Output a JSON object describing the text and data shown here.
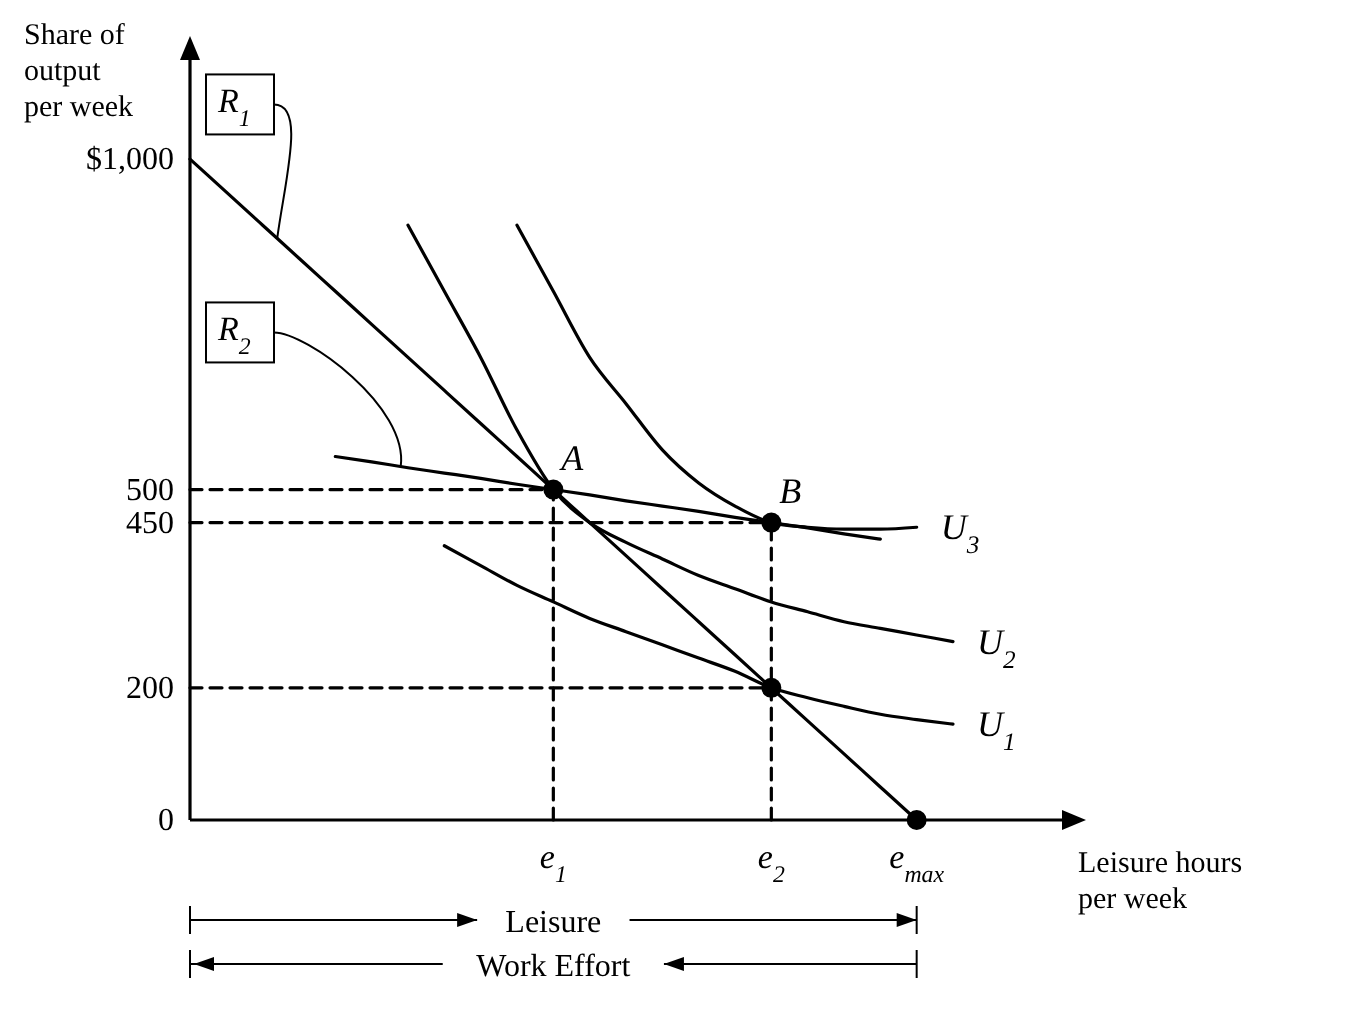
{
  "chart_data": {
    "type": "line",
    "ylabel": "Share of output per week",
    "xlabel": "Leisure hours per week",
    "ylim": [
      0,
      1150
    ],
    "categories": [
      null,
      null,
      null,
      null,
      null,
      null,
      null,
      null,
      null,
      null,
      "e$_{1}$",
      null,
      null,
      null,
      null,
      null,
      "e$_{2}$",
      null,
      null,
      null,
      "e$_{max}$",
      null,
      null,
      null
    ],
    "yticks": [
      0,
      200,
      450,
      500,
      {
        "value": 1000,
        "label": "$1,000"
      }
    ],
    "series": [
      {
        "name": "R$_{1}$",
        "color": "#000000",
        "values": [
          1000,
          950,
          900,
          850,
          800,
          750,
          700,
          650,
          600,
          550,
          500,
          450,
          400,
          350,
          300,
          250,
          200,
          150,
          100,
          50,
          0,
          null,
          null,
          null
        ]
      },
      {
        "name": "R$_{2}$",
        "color": "#000000",
        "values": [
          null,
          null,
          null,
          null,
          550,
          542,
          533,
          525,
          517,
          508,
          500,
          492,
          483,
          475,
          467,
          458,
          450,
          442,
          433,
          425,
          null,
          null,
          null,
          null
        ]
      },
      {
        "name": "U$_{1}$",
        "color": "#000000",
        "values": [
          null,
          null,
          null,
          null,
          null,
          null,
          null,
          415,
          385,
          355,
          330,
          305,
          285,
          265,
          245,
          225,
          200,
          185,
          172,
          160,
          152,
          145,
          null,
          null
        ]
      },
      {
        "name": "U$_{2}$",
        "color": "#000000",
        "values": [
          null,
          null,
          null,
          null,
          null,
          null,
          900,
          800,
          700,
          590,
          500,
          450,
          420,
          395,
          370,
          350,
          330,
          315,
          300,
          290,
          280,
          270,
          null,
          null
        ]
      },
      {
        "name": "U$_{3}$",
        "color": "#000000",
        "values": [
          null,
          null,
          null,
          null,
          null,
          null,
          null,
          null,
          null,
          900,
          800,
          700,
          630,
          560,
          510,
          475,
          450,
          443,
          440,
          440,
          443,
          null,
          null,
          null
        ]
      },
      {
        "color": "#000000",
        "line_style": "dashed",
        "values": [
          500,
          500,
          500,
          500,
          500,
          500,
          500,
          500,
          500,
          500,
          500,
          null,
          null,
          null,
          null,
          null,
          null,
          null,
          null,
          null,
          null,
          null,
          null,
          null
        ]
      },
      {
        "color": "#000000",
        "line_style": "dashed",
        "values": [
          450,
          450,
          450,
          450,
          450,
          450,
          450,
          450,
          450,
          450,
          450,
          450,
          450,
          450,
          450,
          450,
          450,
          null,
          null,
          null,
          null,
          null,
          null,
          null
        ]
      },
      {
        "color": "#000000",
        "line_style": "dashed",
        "values": [
          200,
          200,
          200,
          200,
          200,
          200,
          200,
          200,
          200,
          200,
          200,
          200,
          200,
          200,
          200,
          200,
          200,
          null,
          null,
          null,
          null,
          null,
          null,
          null
        ]
      },
      {
        "color": "#000000",
        "line_style": "dashed",
        "x": [
          "e$_{1}$",
          "e$_{1}$"
        ],
        "values": [
          0,
          500
        ]
      },
      {
        "color": "#000000",
        "line_style": "dashed",
        "x": [
          "e$_{2}$",
          "e$_{2}$"
        ],
        "values": [
          0,
          450
        ]
      },
      {
        "type": "scatter",
        "marker": "circle",
        "color": "#000000",
        "x": [
          "e$_{1}$",
          "e$_{2}$",
          "e$_{2}$",
          "e$_{max}$"
        ],
        "values": [
          500,
          450,
          200,
          0
        ]
      }
    ],
    "annotations": [
      {
        "text": "A",
        "x": "e$_{1}$",
        "y": 500
      },
      {
        "text": "B",
        "x": "e$_{2}$",
        "y": 450
      },
      "Leisure",
      "Work Effort"
    ]
  }
}
